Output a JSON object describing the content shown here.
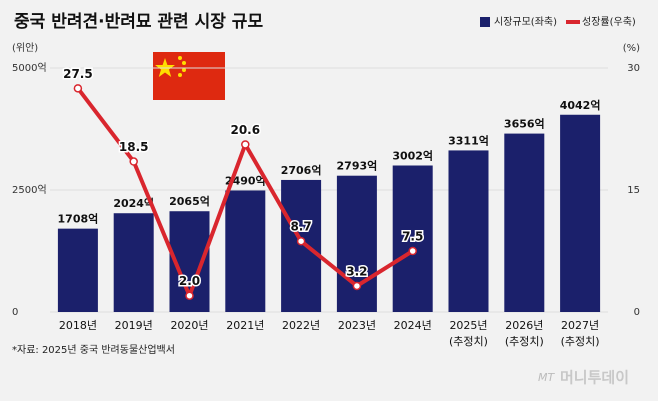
{
  "chart_data": {
    "type": "bar",
    "title": "중국 반려견·반려묘 관련 시장 규모",
    "ylabel": "(위안)",
    "y2label": "(%)",
    "categories": [
      "2018년",
      "2019년",
      "2020년",
      "2021년",
      "2022년",
      "2023년",
      "2024년",
      "2025년",
      "2026년",
      "2027년"
    ],
    "category_notes": [
      null,
      null,
      null,
      null,
      null,
      null,
      null,
      "(추정치)",
      "(추정치)",
      "(추정치)"
    ],
    "series": [
      {
        "name": "시장규모(좌축)",
        "type": "bar",
        "color": "#1b206b",
        "values": [
          1708,
          2024,
          2065,
          2490,
          2706,
          2793,
          3002,
          3311,
          3656,
          4042
        ],
        "value_labels": [
          "1708억",
          "2024억",
          "2065억",
          "2490억",
          "2706억",
          "2793억",
          "3002억",
          "3311억",
          "3656억",
          "4042억"
        ]
      },
      {
        "name": "성장률(우축)",
        "type": "line",
        "color": "#d9262e",
        "axis": "y2",
        "values": [
          27.5,
          18.5,
          2.0,
          20.6,
          8.7,
          3.2,
          7.5,
          null,
          null,
          null
        ],
        "value_labels": [
          "27.5",
          "18.5",
          "2.0",
          "20.6",
          "8.7",
          "3.2",
          "7.5",
          null,
          null,
          null
        ]
      }
    ],
    "ylim": [
      0,
      5000
    ],
    "yticks": [
      0,
      {
        "value": 2500,
        "label": "2500억"
      },
      {
        "value": 5000,
        "label": "5000억"
      }
    ],
    "y2lim": [
      0,
      30
    ],
    "y2ticks": [
      0,
      15,
      30
    ],
    "grid": true,
    "source": "*자료: 2025년 중국 반려동물산업백서",
    "watermark": "머니투데이"
  }
}
